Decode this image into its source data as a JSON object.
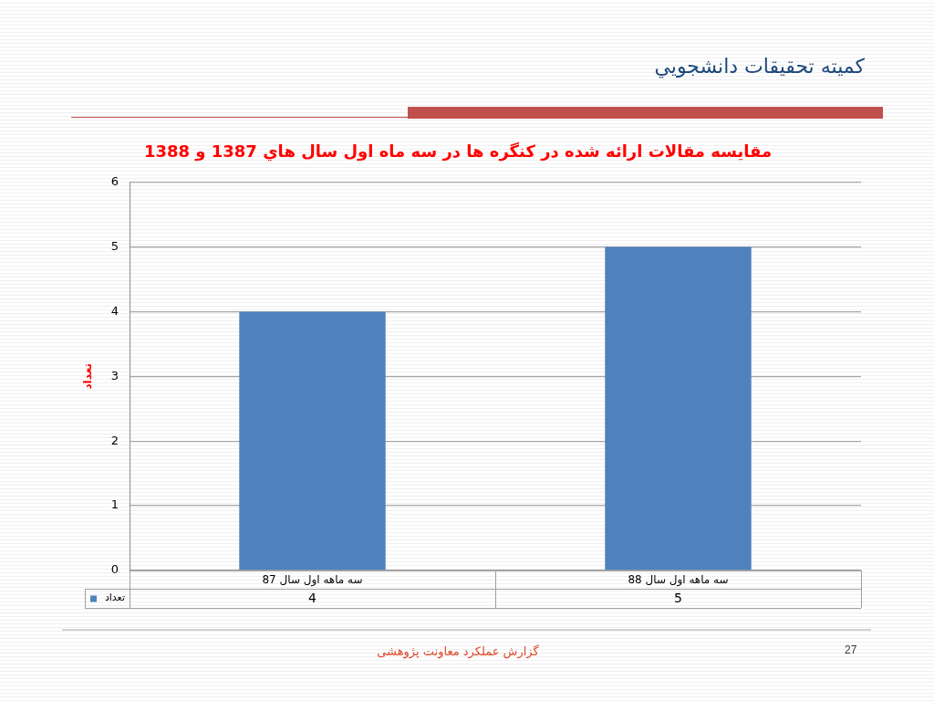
{
  "chart_data": {
    "type": "bar",
    "title": "مقايسه مقالات ارائه شده در کنگره ها در سه ماه اول سال هاي 1387 و 1388",
    "ylabel": "تعداد",
    "categories": [
      "سه ماهه اول سال 87",
      "سه ماهه اول سال 88"
    ],
    "series": [
      {
        "name": "تعداد",
        "color": "#4f81bd",
        "values": [
          4,
          5
        ]
      }
    ],
    "ylim": [
      0,
      6
    ],
    "yticks": [
      0,
      1,
      2,
      3,
      4,
      5,
      6
    ],
    "grid": "y",
    "legend": "bottom",
    "data_labels": true,
    "annotations": [
      "کميته تحقيقات دانشجويي",
      "گزارش عملکرد معاونت پژوهشی",
      "27"
    ]
  }
}
